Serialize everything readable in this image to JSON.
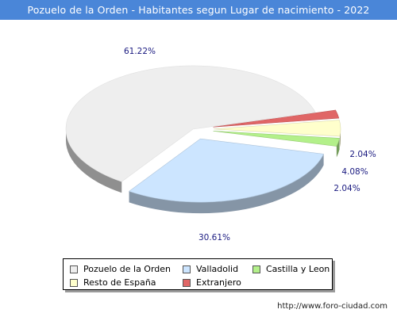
{
  "title": "Pozuelo de la Orden - Habitantes segun Lugar de nacimiento - 2022",
  "chart_data": {
    "type": "pie",
    "title": "Pozuelo de la Orden - Habitantes segun Lugar de nacimiento - 2022",
    "categories": [
      "Pozuelo de la Orden",
      "Valladolid",
      "Castilla y Leon",
      "Resto de España",
      "Extranjero"
    ],
    "values": [
      61.22,
      30.61,
      2.04,
      4.08,
      2.04
    ],
    "labels": [
      "61.22%",
      "30.61%",
      "2.04%",
      "4.08%",
      "2.04%"
    ],
    "colors": [
      "#eeeeee",
      "#cce5ff",
      "#b3f08a",
      "#ffffcc",
      "#e06666"
    ],
    "legend_position": "bottom"
  },
  "legend": [
    {
      "label": "Pozuelo de la Orden",
      "color": "#eeeeee"
    },
    {
      "label": "Valladolid",
      "color": "#cce5ff"
    },
    {
      "label": "Castilla y Leon",
      "color": "#b3f08a"
    },
    {
      "label": "Resto de España",
      "color": "#ffffcc"
    },
    {
      "label": "Extranjero",
      "color": "#e06666"
    }
  ],
  "footer_url": "http://www.foro-ciudad.com"
}
